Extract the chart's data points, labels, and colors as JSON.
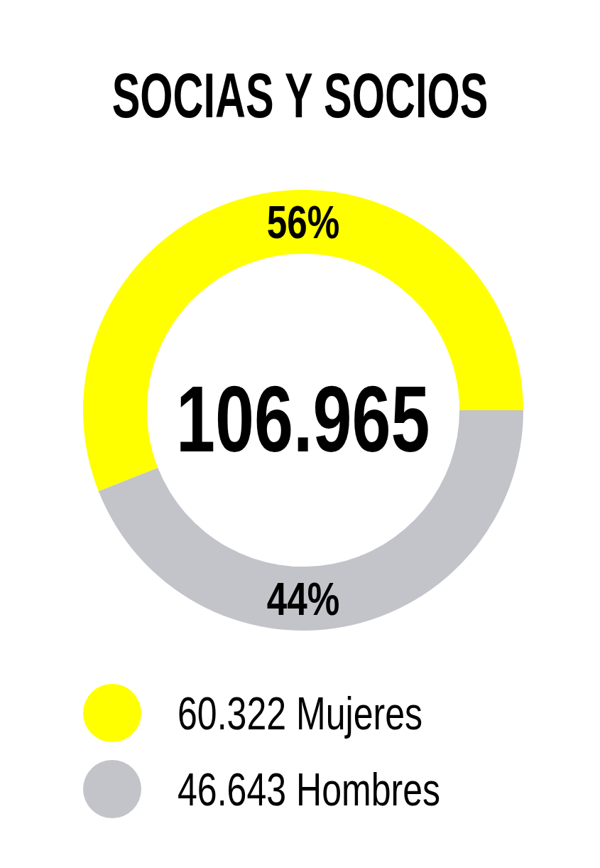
{
  "chart_data": {
    "type": "donut",
    "title": "SOCIAS Y SOCIOS",
    "categories": [
      "60.322 Mujeres",
      "46.643 Hombres"
    ],
    "values": [
      56,
      44
    ],
    "colors": [
      "#ffff00",
      "#c3c4c9"
    ],
    "value_labels": [
      "56%",
      "44%"
    ],
    "annotations": [
      "106.965"
    ],
    "legend": "bottom"
  }
}
